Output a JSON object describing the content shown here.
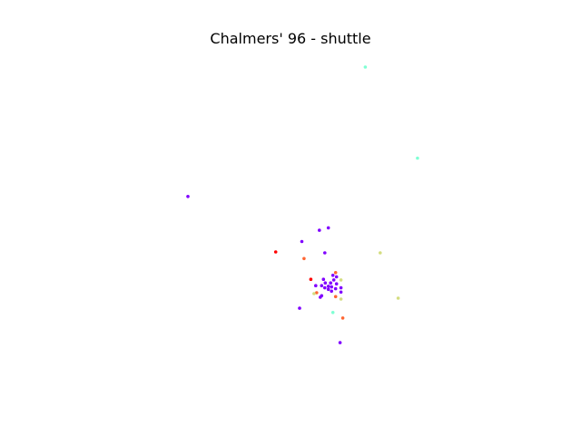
{
  "chart_data": {
    "type": "scatter",
    "title": "Chalmers' 96 - shuttle",
    "xlabel": "",
    "ylabel": "",
    "axes_visible": false,
    "grid": false,
    "xlim": [
      0,
      100
    ],
    "ylim": [
      0,
      100
    ],
    "colors": {
      "purple": "#8000ff",
      "cyan": "#80ffd4",
      "khaki": "#d4dd80",
      "orange": "#ff6633",
      "red": "#ff0000"
    },
    "points": [
      {
        "x": 65.0,
        "y": 100.0,
        "color": "cyan"
      },
      {
        "x": 76.6,
        "y": 70.1,
        "color": "cyan"
      },
      {
        "x": 25.6,
        "y": 57.5,
        "color": "purple"
      },
      {
        "x": 56.8,
        "y": 47.2,
        "color": "purple"
      },
      {
        "x": 54.8,
        "y": 46.4,
        "color": "purple"
      },
      {
        "x": 50.9,
        "y": 42.7,
        "color": "purple"
      },
      {
        "x": 45.1,
        "y": 39.3,
        "color": "red"
      },
      {
        "x": 56.0,
        "y": 39.0,
        "color": "purple"
      },
      {
        "x": 68.3,
        "y": 39.0,
        "color": "khaki"
      },
      {
        "x": 51.4,
        "y": 37.1,
        "color": "orange"
      },
      {
        "x": 58.4,
        "y": 32.5,
        "color": "orange"
      },
      {
        "x": 57.8,
        "y": 31.6,
        "color": "purple"
      },
      {
        "x": 58.6,
        "y": 31.1,
        "color": "purple"
      },
      {
        "x": 52.9,
        "y": 30.3,
        "color": "red"
      },
      {
        "x": 55.7,
        "y": 30.3,
        "color": "purple"
      },
      {
        "x": 58.0,
        "y": 30.1,
        "color": "purple"
      },
      {
        "x": 59.6,
        "y": 30.1,
        "color": "khaki"
      },
      {
        "x": 56.1,
        "y": 29.1,
        "color": "purple"
      },
      {
        "x": 57.3,
        "y": 29.1,
        "color": "purple"
      },
      {
        "x": 58.6,
        "y": 28.8,
        "color": "purple"
      },
      {
        "x": 54.0,
        "y": 28.2,
        "color": "purple"
      },
      {
        "x": 55.3,
        "y": 28.2,
        "color": "purple"
      },
      {
        "x": 56.8,
        "y": 28.0,
        "color": "purple"
      },
      {
        "x": 57.5,
        "y": 27.8,
        "color": "purple"
      },
      {
        "x": 56.0,
        "y": 27.5,
        "color": "purple"
      },
      {
        "x": 56.8,
        "y": 27.0,
        "color": "purple"
      },
      {
        "x": 58.4,
        "y": 27.2,
        "color": "purple"
      },
      {
        "x": 59.6,
        "y": 27.5,
        "color": "purple"
      },
      {
        "x": 57.5,
        "y": 26.4,
        "color": "purple"
      },
      {
        "x": 59.6,
        "y": 26.1,
        "color": "purple"
      },
      {
        "x": 54.2,
        "y": 25.9,
        "color": "orange"
      },
      {
        "x": 53.6,
        "y": 25.6,
        "color": "khaki"
      },
      {
        "x": 55.3,
        "y": 24.9,
        "color": "purple"
      },
      {
        "x": 55.0,
        "y": 24.4,
        "color": "purple"
      },
      {
        "x": 58.4,
        "y": 24.6,
        "color": "orange"
      },
      {
        "x": 59.6,
        "y": 23.8,
        "color": "khaki"
      },
      {
        "x": 72.3,
        "y": 24.1,
        "color": "khaki"
      },
      {
        "x": 50.4,
        "y": 20.8,
        "color": "purple"
      },
      {
        "x": 57.8,
        "y": 19.4,
        "color": "cyan"
      },
      {
        "x": 60.0,
        "y": 17.6,
        "color": "orange"
      },
      {
        "x": 59.4,
        "y": 9.5,
        "color": "purple"
      }
    ]
  }
}
